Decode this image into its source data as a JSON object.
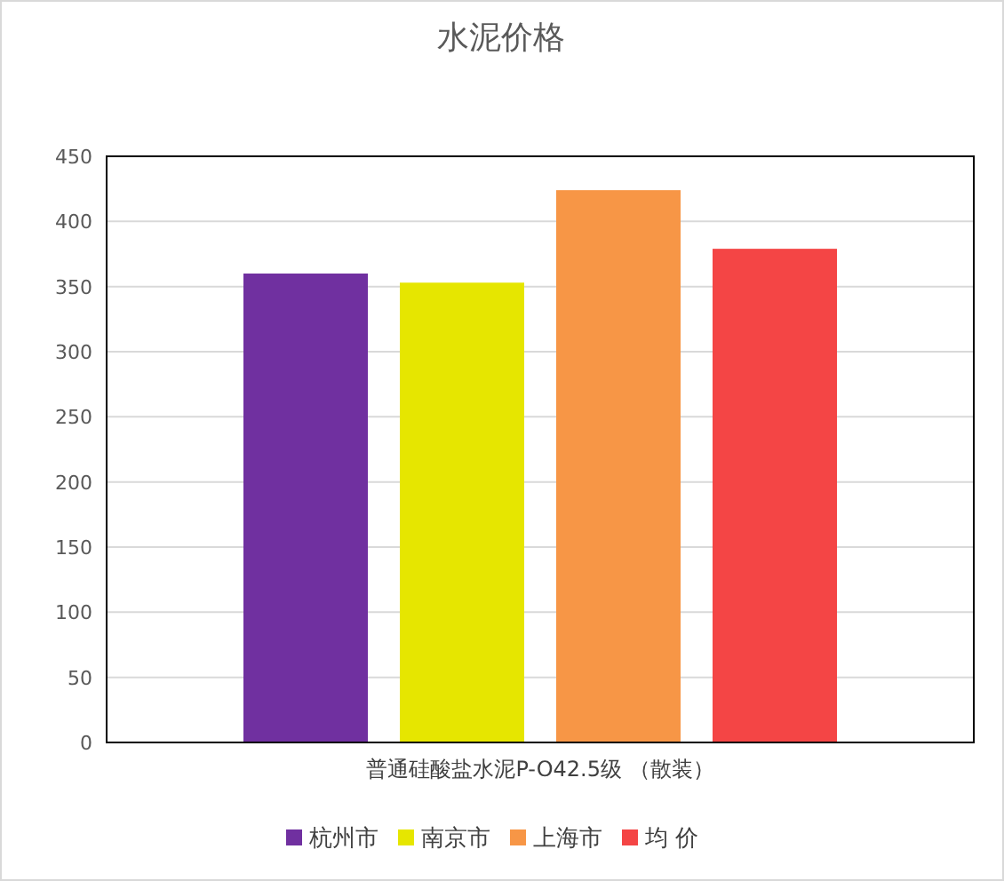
{
  "chart_data": {
    "type": "bar",
    "title": "水泥价格",
    "categories": [
      "普通硅酸盐水泥P-O42.5级 （散装）"
    ],
    "series": [
      {
        "name": "杭州市",
        "color": "#7030a0",
        "values": [
          360
        ]
      },
      {
        "name": "南京市",
        "color": "#e6e600",
        "values": [
          353
        ]
      },
      {
        "name": "上海市",
        "color": "#f79646",
        "values": [
          424
        ]
      },
      {
        "name": "均 价",
        "color": "#f44545",
        "values": [
          379
        ]
      }
    ],
    "ylim": [
      0,
      450
    ],
    "yticks": [
      0,
      50,
      100,
      150,
      200,
      250,
      300,
      350,
      400,
      450
    ],
    "grid": "y",
    "legend": "bottom"
  }
}
